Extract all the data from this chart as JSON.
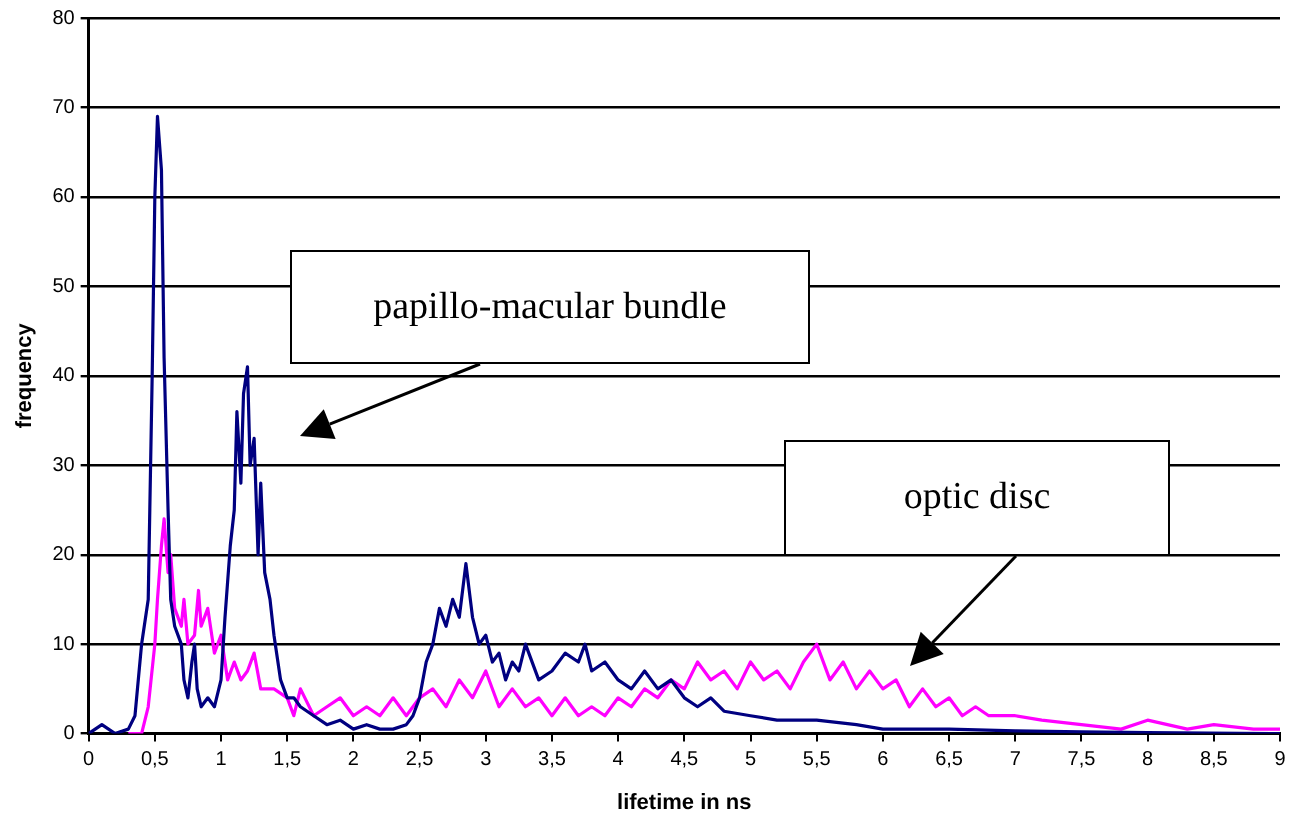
{
  "chart_data": {
    "type": "line",
    "xlabel": "lifetime in ns",
    "ylabel": "frequency",
    "xlim": [
      0,
      9
    ],
    "xticks": [
      0,
      {
        "value": 0.5,
        "label": "0,5"
      },
      1,
      {
        "value": 1.5,
        "label": "1,5"
      },
      2,
      {
        "value": 2.5,
        "label": "2,5"
      },
      3,
      {
        "value": 3.5,
        "label": "3,5"
      },
      4,
      {
        "value": 4.5,
        "label": "4,5"
      },
      5,
      {
        "value": 5.5,
        "label": "5,5"
      },
      6,
      {
        "value": 6.5,
        "label": "6,5"
      },
      7,
      {
        "value": 7.5,
        "label": "7,5"
      },
      8,
      {
        "value": 8.5,
        "label": "8,5"
      },
      9
    ],
    "ylim": [
      0,
      80
    ],
    "yticks": [
      0,
      10,
      20,
      30,
      40,
      50,
      60,
      70,
      80
    ],
    "grid": "y",
    "legend": false,
    "marker": "none",
    "line_style": "solid",
    "annotations": [
      "papillo-macular bundle",
      "optic disc"
    ],
    "series": [
      {
        "color": "#000080",
        "x": [
          0,
          0.1,
          0.2,
          0.3,
          0.35,
          0.4,
          0.42,
          0.45,
          0.48,
          0.5,
          0.52,
          0.55,
          0.57,
          0.6,
          0.62,
          0.65,
          0.7,
          0.72,
          0.75,
          0.78,
          0.8,
          0.82,
          0.85,
          0.9,
          0.95,
          1.0,
          1.03,
          1.07,
          1.1,
          1.12,
          1.15,
          1.17,
          1.2,
          1.22,
          1.25,
          1.28,
          1.3,
          1.33,
          1.37,
          1.4,
          1.45,
          1.5,
          1.55,
          1.6,
          1.7,
          1.8,
          1.9,
          2.0,
          2.1,
          2.2,
          2.3,
          2.4,
          2.45,
          2.5,
          2.55,
          2.6,
          2.65,
          2.7,
          2.75,
          2.8,
          2.85,
          2.9,
          2.95,
          3.0,
          3.05,
          3.1,
          3.15,
          3.2,
          3.25,
          3.3,
          3.4,
          3.5,
          3.6,
          3.7,
          3.75,
          3.8,
          3.9,
          4.0,
          4.1,
          4.2,
          4.3,
          4.4,
          4.5,
          4.6,
          4.7,
          4.8,
          5.0,
          5.2,
          5.5,
          5.8,
          6.0,
          6.5,
          7.0,
          7.5,
          8.0,
          9.0
        ],
        "values": [
          0,
          1,
          0,
          0.5,
          2,
          10,
          12,
          15,
          40,
          60,
          69,
          63,
          42,
          25,
          15,
          12,
          10,
          6,
          4,
          8,
          10,
          5,
          3,
          4,
          3,
          6,
          13,
          21,
          25,
          36,
          28,
          38,
          41,
          30,
          33,
          20,
          28,
          18,
          15,
          11,
          6,
          4,
          4,
          3,
          2,
          1,
          1.5,
          0.5,
          1,
          0.5,
          0.5,
          1,
          2,
          4,
          8,
          10,
          14,
          12,
          15,
          13,
          19,
          13,
          10,
          11,
          8,
          9,
          6,
          8,
          7,
          10,
          6,
          7,
          9,
          8,
          10,
          7,
          8,
          6,
          5,
          7,
          5,
          6,
          4,
          3,
          4,
          2.5,
          2,
          1.5,
          1.5,
          1,
          0.5,
          0.5,
          0.3,
          0.2,
          0.1,
          0
        ]
      },
      {
        "color": "#ff00ff",
        "x": [
          0.3,
          0.4,
          0.45,
          0.5,
          0.52,
          0.55,
          0.57,
          0.6,
          0.62,
          0.65,
          0.7,
          0.72,
          0.75,
          0.8,
          0.83,
          0.85,
          0.9,
          0.95,
          1.0,
          1.05,
          1.1,
          1.15,
          1.2,
          1.25,
          1.3,
          1.4,
          1.5,
          1.55,
          1.6,
          1.7,
          1.8,
          1.9,
          2.0,
          2.1,
          2.2,
          2.3,
          2.4,
          2.5,
          2.6,
          2.7,
          2.8,
          2.9,
          3.0,
          3.1,
          3.2,
          3.3,
          3.4,
          3.5,
          3.6,
          3.7,
          3.8,
          3.9,
          4.0,
          4.1,
          4.2,
          4.3,
          4.4,
          4.5,
          4.6,
          4.7,
          4.8,
          4.9,
          5.0,
          5.1,
          5.2,
          5.3,
          5.4,
          5.5,
          5.6,
          5.7,
          5.8,
          5.9,
          6.0,
          6.1,
          6.2,
          6.3,
          6.4,
          6.5,
          6.6,
          6.7,
          6.8,
          7.0,
          7.2,
          7.5,
          7.8,
          8.0,
          8.3,
          8.5,
          8.8,
          9.0
        ],
        "values": [
          0,
          0,
          3,
          10,
          15,
          21,
          24,
          18,
          20,
          14,
          12,
          15,
          10,
          11,
          16,
          12,
          14,
          9,
          11,
          6,
          8,
          6,
          7,
          9,
          5,
          5,
          4,
          2,
          5,
          2,
          3,
          4,
          2,
          3,
          2,
          4,
          2,
          4,
          5,
          3,
          6,
          4,
          7,
          3,
          5,
          3,
          4,
          2,
          4,
          2,
          3,
          2,
          4,
          3,
          5,
          4,
          6,
          5,
          8,
          6,
          7,
          5,
          8,
          6,
          7,
          5,
          8,
          10,
          6,
          8,
          5,
          7,
          5,
          6,
          3,
          5,
          3,
          4,
          2,
          3,
          2,
          2,
          1.5,
          1,
          0.5,
          1.5,
          0.5,
          1,
          0.5,
          0.5
        ]
      }
    ]
  }
}
